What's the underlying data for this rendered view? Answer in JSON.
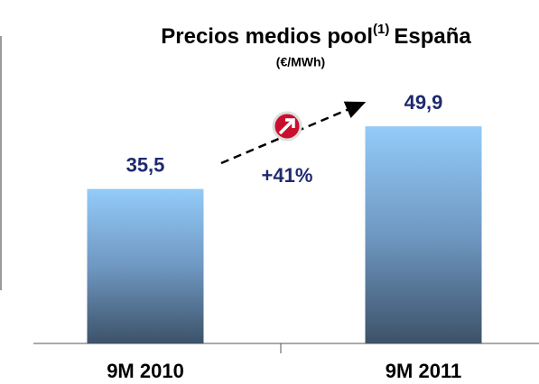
{
  "chart_data": {
    "type": "bar",
    "title": "Precios medios pool",
    "title_superscript": "(1)",
    "title_suffix": "España",
    "subtitle": "(€/MWh)",
    "categories": [
      "9M 2010",
      "9M 2011"
    ],
    "values": [
      35.5,
      49.9
    ],
    "value_labels": [
      "35,5",
      "49,9"
    ],
    "annotation": "+41%",
    "ylim": [
      0,
      52
    ]
  }
}
